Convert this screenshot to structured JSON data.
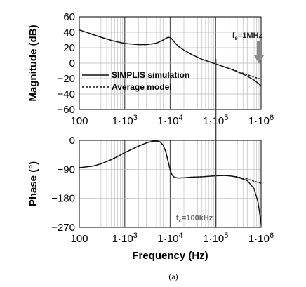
{
  "chart_data": [
    {
      "type": "line",
      "xscale": "log",
      "xlim": [
        100,
        1000000
      ],
      "ylim": [
        -60,
        60
      ],
      "yticks": [
        60,
        40,
        20,
        0,
        -20,
        -40,
        -60
      ],
      "xtick_labels": [
        "100",
        "1·10",
        "1·10",
        "1·10",
        "1·10"
      ],
      "xtick_exponents": [
        "",
        "3",
        "4",
        "5",
        "6"
      ],
      "ylabel": "Magnitude (dB)",
      "xlabel": "",
      "legend_position": "lower-left",
      "series": [
        {
          "name": "SIMPLIS simulation",
          "style": "solid",
          "points": [
            [
              100,
              43
            ],
            [
              150,
              39.5
            ],
            [
              200,
              37
            ],
            [
              300,
              33.5
            ],
            [
              500,
              29.5
            ],
            [
              700,
              27.5
            ],
            [
              1000,
              25.5
            ],
            [
              2000,
              24
            ],
            [
              3000,
              24
            ],
            [
              4000,
              25
            ],
            [
              5000,
              26
            ],
            [
              6000,
              28
            ],
            [
              7000,
              30
            ],
            [
              8000,
              32
            ],
            [
              9000,
              33.5
            ],
            [
              10000,
              33
            ],
            [
              11000,
              31
            ],
            [
              12500,
              27
            ],
            [
              15000,
              22
            ],
            [
              20000,
              17
            ],
            [
              30000,
              11
            ],
            [
              50000,
              5
            ],
            [
              100000,
              -1
            ],
            [
              200000,
              -7
            ],
            [
              300000,
              -11
            ],
            [
              500000,
              -17
            ],
            [
              700000,
              -22
            ],
            [
              900000,
              -27
            ],
            [
              1000000,
              -30
            ]
          ]
        },
        {
          "name": "Average model",
          "style": "dashed",
          "points": [
            [
              100,
              43
            ],
            [
              150,
              39.5
            ],
            [
              200,
              37
            ],
            [
              300,
              33.5
            ],
            [
              500,
              29.5
            ],
            [
              700,
              27.5
            ],
            [
              1000,
              25.5
            ],
            [
              2000,
              24
            ],
            [
              3000,
              24
            ],
            [
              4000,
              25
            ],
            [
              5000,
              26
            ],
            [
              6000,
              28
            ],
            [
              7000,
              30
            ],
            [
              8000,
              32
            ],
            [
              9000,
              33.5
            ],
            [
              10000,
              33
            ],
            [
              11000,
              31
            ],
            [
              12500,
              27
            ],
            [
              15000,
              22
            ],
            [
              20000,
              17
            ],
            [
              30000,
              11
            ],
            [
              50000,
              5
            ],
            [
              100000,
              -1
            ],
            [
              200000,
              -7
            ],
            [
              300000,
              -10.5
            ],
            [
              500000,
              -15
            ],
            [
              700000,
              -18
            ],
            [
              1000000,
              -21
            ]
          ]
        }
      ],
      "annotations": [
        {
          "text": "f",
          "sub": "s",
          "suffix": "=1MHz",
          "x": 1000000
        }
      ]
    },
    {
      "type": "line",
      "xscale": "log",
      "xlim": [
        100,
        1000000
      ],
      "ylim": [
        -270,
        0
      ],
      "yticks": [
        0,
        -90,
        -180,
        -270
      ],
      "xtick_labels": [
        "100",
        "1·10",
        "1·10",
        "1·10",
        "1·10"
      ],
      "xtick_exponents": [
        "",
        "3",
        "4",
        "5",
        "6"
      ],
      "ylabel": "Phase (°)",
      "xlabel": "Frequency (Hz)",
      "series": [
        {
          "name": "SIMPLIS simulation",
          "style": "solid",
          "points": [
            [
              100,
              -85
            ],
            [
              200,
              -80
            ],
            [
              300,
              -73
            ],
            [
              500,
              -60
            ],
            [
              700,
              -50
            ],
            [
              1000,
              -38
            ],
            [
              2000,
              -18
            ],
            [
              3000,
              -8
            ],
            [
              4000,
              -3
            ],
            [
              5000,
              -2
            ],
            [
              6000,
              -5
            ],
            [
              7000,
              -15
            ],
            [
              8000,
              -35
            ],
            [
              9000,
              -65
            ],
            [
              10000,
              -92
            ],
            [
              11000,
              -108
            ],
            [
              12500,
              -115
            ],
            [
              15000,
              -117
            ],
            [
              20000,
              -116
            ],
            [
              30000,
              -114
            ],
            [
              50000,
              -113
            ],
            [
              100000,
              -110
            ],
            [
              150000,
              -109
            ],
            [
              200000,
              -110
            ],
            [
              300000,
              -114
            ],
            [
              500000,
              -125
            ],
            [
              700000,
              -150
            ],
            [
              850000,
              -190
            ],
            [
              950000,
              -235
            ],
            [
              1000000,
              -260
            ]
          ]
        },
        {
          "name": "Average model",
          "style": "dashed",
          "points": [
            [
              100,
              -85
            ],
            [
              200,
              -80
            ],
            [
              300,
              -73
            ],
            [
              500,
              -60
            ],
            [
              700,
              -50
            ],
            [
              1000,
              -38
            ],
            [
              2000,
              -18
            ],
            [
              3000,
              -8
            ],
            [
              4000,
              -3
            ],
            [
              5000,
              -2
            ],
            [
              6000,
              -5
            ],
            [
              7000,
              -15
            ],
            [
              8000,
              -35
            ],
            [
              9000,
              -65
            ],
            [
              10000,
              -92
            ],
            [
              11000,
              -108
            ],
            [
              12500,
              -115
            ],
            [
              15000,
              -117
            ],
            [
              20000,
              -116
            ],
            [
              30000,
              -114
            ],
            [
              50000,
              -113
            ],
            [
              100000,
              -110
            ],
            [
              150000,
              -109
            ],
            [
              200000,
              -110
            ],
            [
              300000,
              -113
            ],
            [
              500000,
              -120
            ],
            [
              700000,
              -127
            ],
            [
              1000000,
              -133
            ]
          ]
        }
      ],
      "annotations": [
        {
          "text": "f",
          "sub": "c",
          "suffix": "=100kHz",
          "x": 100000
        }
      ]
    }
  ],
  "caption": "(a)",
  "colors": {
    "curve": "#111111",
    "grid": "#b8b8b8",
    "grid_major": "#555555",
    "annotation": "#6b6b6b",
    "arrow": "#8a8a8a"
  }
}
